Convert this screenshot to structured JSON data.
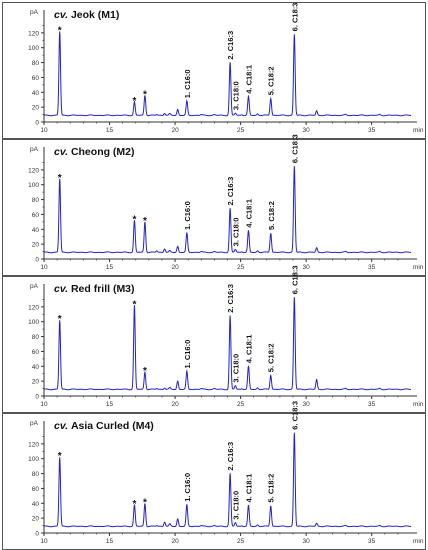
{
  "chart_data": [
    {
      "type": "line",
      "title_prefix": "cv.",
      "title_name": "Jeok (M1)",
      "ylabel": "pA",
      "xlabel": "min",
      "xlim": [
        10,
        38
      ],
      "ylim": [
        0,
        140
      ],
      "x_ticks": [
        10,
        15,
        20,
        25,
        30,
        35
      ],
      "y_ticks": [
        0,
        20,
        40,
        60,
        80,
        100,
        120
      ],
      "color": "#2323c8",
      "baseline": 9,
      "peaks": [
        {
          "x": 11.2,
          "y": 122,
          "label": "*"
        },
        {
          "x": 16.9,
          "y": 27,
          "label": "*"
        },
        {
          "x": 17.7,
          "y": 36,
          "label": "*"
        },
        {
          "x": 18.6,
          "y": 10,
          "label": ""
        },
        {
          "x": 19.2,
          "y": 12,
          "label": ""
        },
        {
          "x": 19.6,
          "y": 11,
          "label": ""
        },
        {
          "x": 20.2,
          "y": 17,
          "label": ""
        },
        {
          "x": 20.9,
          "y": 28,
          "label": "1. C16:0"
        },
        {
          "x": 22.0,
          "y": 10,
          "label": ""
        },
        {
          "x": 23.0,
          "y": 10,
          "label": ""
        },
        {
          "x": 24.2,
          "y": 80,
          "label": "2. C16:3"
        },
        {
          "x": 24.6,
          "y": 12,
          "label": "3. C18:0"
        },
        {
          "x": 25.1,
          "y": 10,
          "label": ""
        },
        {
          "x": 25.6,
          "y": 34,
          "label": "4. C18:1"
        },
        {
          "x": 26.3,
          "y": 11,
          "label": ""
        },
        {
          "x": 27.3,
          "y": 32,
          "label": "5. C18:2"
        },
        {
          "x": 29.1,
          "y": 118,
          "label": "6. C18:3"
        },
        {
          "x": 30.8,
          "y": 15,
          "label": ""
        },
        {
          "x": 33.0,
          "y": 10,
          "label": ""
        },
        {
          "x": 35.6,
          "y": 10,
          "label": ""
        }
      ]
    },
    {
      "type": "line",
      "title_prefix": "cv.",
      "title_name": "Cheong (M2)",
      "ylabel": "pA",
      "xlabel": "min",
      "xlim": [
        10,
        38
      ],
      "ylim": [
        0,
        140
      ],
      "x_ticks": [
        10,
        15,
        20,
        25,
        30,
        35
      ],
      "y_ticks": [
        0,
        20,
        40,
        60,
        80,
        100,
        120
      ],
      "color": "#2323c8",
      "baseline": 9,
      "peaks": [
        {
          "x": 11.2,
          "y": 108,
          "label": "*"
        },
        {
          "x": 16.9,
          "y": 52,
          "label": "*"
        },
        {
          "x": 17.7,
          "y": 50,
          "label": "*"
        },
        {
          "x": 18.6,
          "y": 11,
          "label": ""
        },
        {
          "x": 19.2,
          "y": 14,
          "label": ""
        },
        {
          "x": 19.6,
          "y": 11,
          "label": ""
        },
        {
          "x": 20.2,
          "y": 17,
          "label": ""
        },
        {
          "x": 20.9,
          "y": 35,
          "label": "1. C16:0"
        },
        {
          "x": 22.0,
          "y": 10,
          "label": ""
        },
        {
          "x": 23.0,
          "y": 10,
          "label": ""
        },
        {
          "x": 24.2,
          "y": 68,
          "label": "2. C16:3"
        },
        {
          "x": 24.6,
          "y": 13,
          "label": "3. C18:0"
        },
        {
          "x": 25.1,
          "y": 10,
          "label": ""
        },
        {
          "x": 25.6,
          "y": 38,
          "label": "4. C18:1"
        },
        {
          "x": 26.3,
          "y": 11,
          "label": ""
        },
        {
          "x": 27.3,
          "y": 35,
          "label": "5. C18:2"
        },
        {
          "x": 29.1,
          "y": 125,
          "label": "6. C18:3"
        },
        {
          "x": 30.8,
          "y": 15,
          "label": ""
        },
        {
          "x": 33.0,
          "y": 10,
          "label": ""
        },
        {
          "x": 35.6,
          "y": 10,
          "label": ""
        }
      ]
    },
    {
      "type": "line",
      "title_prefix": "cv.",
      "title_name": "Red frill (M3)",
      "ylabel": "pA",
      "xlabel": "min",
      "xlim": [
        10,
        38
      ],
      "ylim": [
        0,
        140
      ],
      "x_ticks": [
        10,
        15,
        20,
        25,
        30,
        35
      ],
      "y_ticks": [
        0,
        20,
        40,
        60,
        80,
        100,
        120
      ],
      "color": "#2323c8",
      "baseline": 9,
      "peaks": [
        {
          "x": 11.2,
          "y": 102,
          "label": "*"
        },
        {
          "x": 16.9,
          "y": 122,
          "label": "*"
        },
        {
          "x": 17.7,
          "y": 32,
          "label": "*"
        },
        {
          "x": 18.6,
          "y": 10,
          "label": ""
        },
        {
          "x": 19.2,
          "y": 11,
          "label": ""
        },
        {
          "x": 19.6,
          "y": 11,
          "label": ""
        },
        {
          "x": 20.2,
          "y": 20,
          "label": ""
        },
        {
          "x": 20.9,
          "y": 33,
          "label": "1. C16:0"
        },
        {
          "x": 22.0,
          "y": 10,
          "label": ""
        },
        {
          "x": 23.0,
          "y": 10,
          "label": ""
        },
        {
          "x": 24.2,
          "y": 108,
          "label": "2. C16:3"
        },
        {
          "x": 24.6,
          "y": 14,
          "label": "3. C18:0"
        },
        {
          "x": 25.1,
          "y": 10,
          "label": ""
        },
        {
          "x": 25.6,
          "y": 40,
          "label": "4. C18:1"
        },
        {
          "x": 26.3,
          "y": 11,
          "label": ""
        },
        {
          "x": 27.3,
          "y": 28,
          "label": "5. C18:2"
        },
        {
          "x": 29.1,
          "y": 133,
          "label": "6. C18:3"
        },
        {
          "x": 30.8,
          "y": 22,
          "label": ""
        },
        {
          "x": 33.0,
          "y": 10,
          "label": ""
        },
        {
          "x": 35.6,
          "y": 10,
          "label": ""
        }
      ]
    },
    {
      "type": "line",
      "title_prefix": "cv.",
      "title_name": "Asia Curled (M4)",
      "ylabel": "pA",
      "xlabel": "min",
      "xlim": [
        10,
        38
      ],
      "ylim": [
        0,
        140
      ],
      "x_ticks": [
        10,
        15,
        20,
        25,
        30,
        35
      ],
      "y_ticks": [
        0,
        20,
        40,
        60,
        80,
        100,
        120
      ],
      "color": "#2323c8",
      "baseline": 9,
      "peaks": [
        {
          "x": 11.2,
          "y": 102,
          "label": "*"
        },
        {
          "x": 16.9,
          "y": 38,
          "label": "*"
        },
        {
          "x": 17.7,
          "y": 40,
          "label": "*"
        },
        {
          "x": 18.6,
          "y": 10,
          "label": ""
        },
        {
          "x": 19.2,
          "y": 15,
          "label": ""
        },
        {
          "x": 19.6,
          "y": 12,
          "label": ""
        },
        {
          "x": 20.2,
          "y": 19,
          "label": ""
        },
        {
          "x": 20.9,
          "y": 38,
          "label": "1. C16:0"
        },
        {
          "x": 22.0,
          "y": 10,
          "label": ""
        },
        {
          "x": 23.0,
          "y": 10,
          "label": ""
        },
        {
          "x": 24.2,
          "y": 80,
          "label": "2. C16:3"
        },
        {
          "x": 24.6,
          "y": 14,
          "label": "3. C18:0"
        },
        {
          "x": 25.1,
          "y": 10,
          "label": ""
        },
        {
          "x": 25.6,
          "y": 37,
          "label": "4. C18:1"
        },
        {
          "x": 26.3,
          "y": 11,
          "label": ""
        },
        {
          "x": 27.3,
          "y": 37,
          "label": "5. C18:2"
        },
        {
          "x": 29.1,
          "y": 135,
          "label": "6. C18:3"
        },
        {
          "x": 30.8,
          "y": 13,
          "label": ""
        },
        {
          "x": 33.0,
          "y": 10,
          "label": ""
        },
        {
          "x": 35.6,
          "y": 10,
          "label": ""
        }
      ]
    }
  ]
}
